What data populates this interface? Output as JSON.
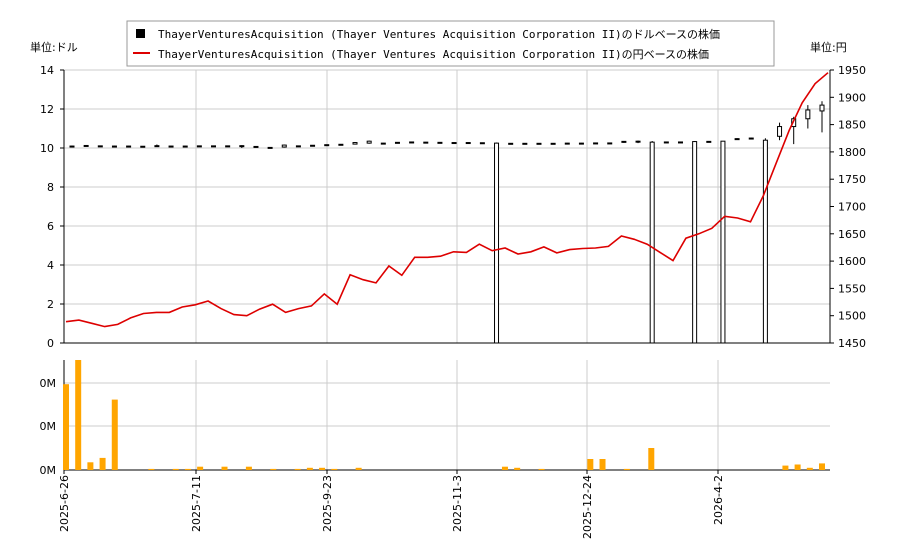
{
  "units": {
    "left": "単位:ドル",
    "right": "単位:円"
  },
  "legend": [
    {
      "label": "ThayerVenturesAcquisition (Thayer Ventures Acquisition Corporation II)のドルベースの株価",
      "color": "#000000"
    },
    {
      "label": "ThayerVenturesAcquisition (Thayer Ventures Acquisition Corporation II)の円ベースの株価",
      "color": "#dd0000"
    }
  ],
  "chart_data": [
    {
      "type": "line",
      "description_free": true,
      "grid": true,
      "left_axis": {
        "ylim": [
          0,
          14
        ],
        "ticks": [
          "0",
          "2",
          "4",
          "6",
          "8",
          "10",
          "12",
          "14"
        ]
      },
      "right_axis": {
        "ylim": [
          1450,
          1950
        ],
        "ticks": [
          "1450",
          "1500",
          "1550",
          "1600",
          "1650",
          "1700",
          "1750",
          "1800",
          "1850",
          "1900",
          "1950"
        ]
      },
      "x_ticks": [
        "2025-6-26",
        "2025-7-11",
        "2025-9-23",
        "2025-11-3",
        "2025-12-24",
        "2026-4-2"
      ],
      "series": [
        {
          "kind": "candlestick",
          "axis": "left",
          "ohlc": [
            [
              10.1,
              10.12,
              10.08,
              10.1
            ],
            [
              10.12,
              10.15,
              10.1,
              10.13
            ],
            [
              10.11,
              10.12,
              10.1,
              10.11
            ],
            [
              10.1,
              10.12,
              10.09,
              10.1
            ],
            [
              10.1,
              10.11,
              10.09,
              10.1
            ],
            [
              10.09,
              10.1,
              10.08,
              10.09
            ],
            [
              10.1,
              10.18,
              10.05,
              10.12
            ],
            [
              10.1,
              10.11,
              10.09,
              10.1
            ],
            [
              10.1,
              10.11,
              10.09,
              10.1
            ],
            [
              10.1,
              10.12,
              10.09,
              10.11
            ],
            [
              10.11,
              10.12,
              10.1,
              10.11
            ],
            [
              10.11,
              10.12,
              10.1,
              10.11
            ],
            [
              10.07,
              10.14,
              10.0,
              10.12
            ],
            [
              10.08,
              10.1,
              10.05,
              10.08
            ],
            [
              10.02,
              10.05,
              9.98,
              10.03
            ],
            [
              10.05,
              10.18,
              10.02,
              10.15
            ],
            [
              10.1,
              10.12,
              10.09,
              10.11
            ],
            [
              10.13,
              10.15,
              10.12,
              10.14
            ],
            [
              10.16,
              10.18,
              10.15,
              10.17
            ],
            [
              10.18,
              10.2,
              10.17,
              10.19
            ],
            [
              10.2,
              10.3,
              10.18,
              10.28
            ],
            [
              10.25,
              10.38,
              10.22,
              10.35
            ],
            [
              10.24,
              10.26,
              10.23,
              10.25
            ],
            [
              10.28,
              10.3,
              10.27,
              10.29
            ],
            [
              10.3,
              10.32,
              10.29,
              10.31
            ],
            [
              10.29,
              10.31,
              10.28,
              10.3
            ],
            [
              10.28,
              10.3,
              10.27,
              10.29
            ],
            [
              10.27,
              10.29,
              10.26,
              10.28
            ],
            [
              10.27,
              10.29,
              10.26,
              10.28
            ],
            [
              10.26,
              10.28,
              10.25,
              10.27
            ],
            [
              0.0,
              10.28,
              0.0,
              10.25
            ],
            [
              10.23,
              10.25,
              10.22,
              10.24
            ],
            [
              10.23,
              10.25,
              10.22,
              10.24
            ],
            [
              10.23,
              10.25,
              10.22,
              10.24
            ],
            [
              10.23,
              10.25,
              10.22,
              10.24
            ],
            [
              10.24,
              10.26,
              10.23,
              10.25
            ],
            [
              10.24,
              10.26,
              10.23,
              10.25
            ],
            [
              10.25,
              10.27,
              10.24,
              10.26
            ],
            [
              10.25,
              10.27,
              10.24,
              10.26
            ],
            [
              10.3,
              10.36,
              10.27,
              10.34
            ],
            [
              10.3,
              10.38,
              10.25,
              10.35
            ],
            [
              0.0,
              10.36,
              0.0,
              10.3
            ],
            [
              10.3,
              10.32,
              10.28,
              10.31
            ],
            [
              10.3,
              10.32,
              10.29,
              10.31
            ],
            [
              0.0,
              10.35,
              0.0,
              10.33
            ],
            [
              10.33,
              10.36,
              10.32,
              10.34
            ],
            [
              0.0,
              10.36,
              0.0,
              10.35
            ],
            [
              10.45,
              10.5,
              10.43,
              10.48
            ],
            [
              10.5,
              10.53,
              10.48,
              10.51
            ],
            [
              0.0,
              10.5,
              0.0,
              10.4
            ],
            [
              10.6,
              11.3,
              10.4,
              11.1
            ],
            [
              11.1,
              11.6,
              10.2,
              11.5
            ],
            [
              11.5,
              12.2,
              11.0,
              11.95
            ],
            [
              11.9,
              12.4,
              10.8,
              12.2
            ]
          ]
        },
        {
          "kind": "line",
          "axis": "right",
          "color": "#dd0000",
          "values": [
            1489,
            1492,
            1486,
            1480,
            1484,
            1496,
            1504,
            1506,
            1506,
            1516,
            1520,
            1527,
            1513,
            1502,
            1500,
            1512,
            1521,
            1506,
            1513,
            1518,
            1540,
            1521,
            1575,
            1566,
            1560,
            1591,
            1574,
            1607,
            1607,
            1609,
            1617,
            1616,
            1631,
            1619,
            1624,
            1613,
            1617,
            1626,
            1615,
            1621,
            1623,
            1624,
            1627,
            1646,
            1640,
            1631,
            1616,
            1601,
            1642,
            1650,
            1660,
            1682,
            1679,
            1672,
            1720,
            1780,
            1840,
            1890,
            1925,
            1945
          ]
        }
      ]
    },
    {
      "type": "bar",
      "grid": true,
      "series": [
        {
          "name": "",
          "color": "#ffa500",
          "values": [
            0.78,
            1.0,
            0.07,
            0.11,
            0.64,
            0,
            0,
            0.01,
            0,
            0.01,
            0.01,
            0.03,
            0,
            0.03,
            0,
            0.03,
            0,
            0.01,
            0,
            0.01,
            0.02,
            0.02,
            0.01,
            0,
            0.02,
            0,
            0,
            0,
            0,
            0,
            0,
            0,
            0,
            0,
            0,
            0,
            0.03,
            0.02,
            0,
            0.01,
            0,
            0,
            0,
            0.1,
            0.1,
            0,
            0.01,
            0,
            0.2,
            0,
            0,
            0,
            0,
            0,
            0,
            0,
            0,
            0,
            0,
            0.04,
            0.05,
            0.02,
            0.06
          ]
        }
      ],
      "y_ticks": [
        "0M",
        "0M",
        "0M"
      ]
    }
  ]
}
